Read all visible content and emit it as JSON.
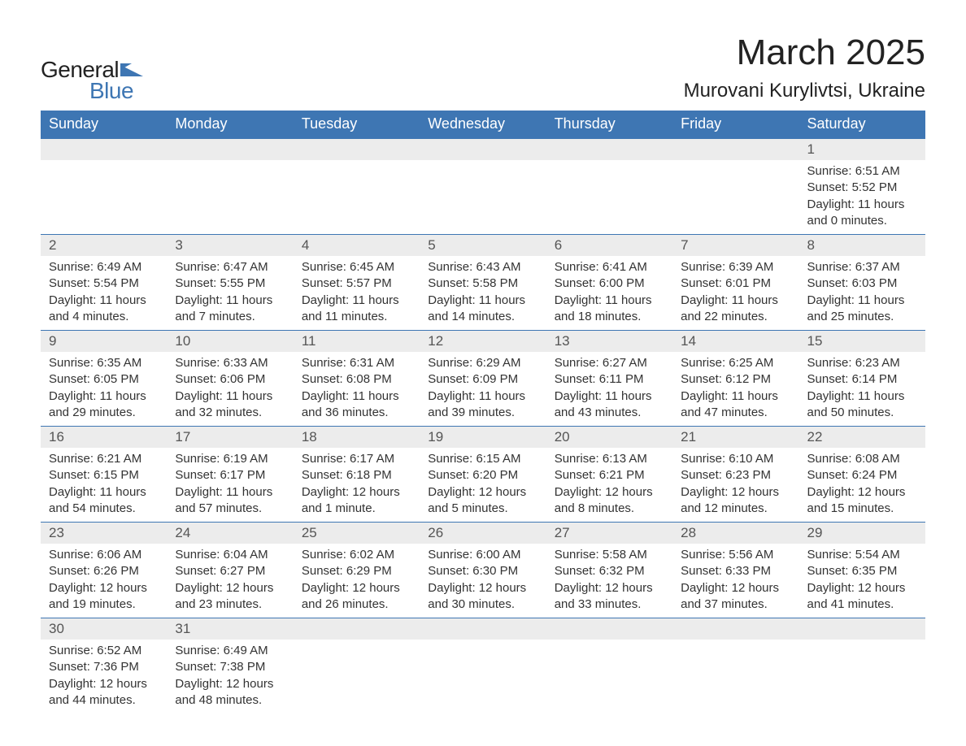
{
  "logo": {
    "text_general": "General",
    "text_blue": "Blue",
    "flag_color": "#3e76b3"
  },
  "header": {
    "month_title": "March 2025",
    "location": "Murovani Kurylivtsi, Ukraine"
  },
  "colors": {
    "header_bg": "#3e76b3",
    "header_text": "#ffffff",
    "day_number_bg": "#ececec",
    "day_number_text": "#555555",
    "body_text": "#333333",
    "border": "#3e76b3",
    "page_bg": "#ffffff"
  },
  "days_of_week": [
    "Sunday",
    "Monday",
    "Tuesday",
    "Wednesday",
    "Thursday",
    "Friday",
    "Saturday"
  ],
  "weeks": [
    [
      null,
      null,
      null,
      null,
      null,
      null,
      {
        "n": "1",
        "sunrise": "Sunrise: 6:51 AM",
        "sunset": "Sunset: 5:52 PM",
        "daylight1": "Daylight: 11 hours",
        "daylight2": "and 0 minutes."
      }
    ],
    [
      {
        "n": "2",
        "sunrise": "Sunrise: 6:49 AM",
        "sunset": "Sunset: 5:54 PM",
        "daylight1": "Daylight: 11 hours",
        "daylight2": "and 4 minutes."
      },
      {
        "n": "3",
        "sunrise": "Sunrise: 6:47 AM",
        "sunset": "Sunset: 5:55 PM",
        "daylight1": "Daylight: 11 hours",
        "daylight2": "and 7 minutes."
      },
      {
        "n": "4",
        "sunrise": "Sunrise: 6:45 AM",
        "sunset": "Sunset: 5:57 PM",
        "daylight1": "Daylight: 11 hours",
        "daylight2": "and 11 minutes."
      },
      {
        "n": "5",
        "sunrise": "Sunrise: 6:43 AM",
        "sunset": "Sunset: 5:58 PM",
        "daylight1": "Daylight: 11 hours",
        "daylight2": "and 14 minutes."
      },
      {
        "n": "6",
        "sunrise": "Sunrise: 6:41 AM",
        "sunset": "Sunset: 6:00 PM",
        "daylight1": "Daylight: 11 hours",
        "daylight2": "and 18 minutes."
      },
      {
        "n": "7",
        "sunrise": "Sunrise: 6:39 AM",
        "sunset": "Sunset: 6:01 PM",
        "daylight1": "Daylight: 11 hours",
        "daylight2": "and 22 minutes."
      },
      {
        "n": "8",
        "sunrise": "Sunrise: 6:37 AM",
        "sunset": "Sunset: 6:03 PM",
        "daylight1": "Daylight: 11 hours",
        "daylight2": "and 25 minutes."
      }
    ],
    [
      {
        "n": "9",
        "sunrise": "Sunrise: 6:35 AM",
        "sunset": "Sunset: 6:05 PM",
        "daylight1": "Daylight: 11 hours",
        "daylight2": "and 29 minutes."
      },
      {
        "n": "10",
        "sunrise": "Sunrise: 6:33 AM",
        "sunset": "Sunset: 6:06 PM",
        "daylight1": "Daylight: 11 hours",
        "daylight2": "and 32 minutes."
      },
      {
        "n": "11",
        "sunrise": "Sunrise: 6:31 AM",
        "sunset": "Sunset: 6:08 PM",
        "daylight1": "Daylight: 11 hours",
        "daylight2": "and 36 minutes."
      },
      {
        "n": "12",
        "sunrise": "Sunrise: 6:29 AM",
        "sunset": "Sunset: 6:09 PM",
        "daylight1": "Daylight: 11 hours",
        "daylight2": "and 39 minutes."
      },
      {
        "n": "13",
        "sunrise": "Sunrise: 6:27 AM",
        "sunset": "Sunset: 6:11 PM",
        "daylight1": "Daylight: 11 hours",
        "daylight2": "and 43 minutes."
      },
      {
        "n": "14",
        "sunrise": "Sunrise: 6:25 AM",
        "sunset": "Sunset: 6:12 PM",
        "daylight1": "Daylight: 11 hours",
        "daylight2": "and 47 minutes."
      },
      {
        "n": "15",
        "sunrise": "Sunrise: 6:23 AM",
        "sunset": "Sunset: 6:14 PM",
        "daylight1": "Daylight: 11 hours",
        "daylight2": "and 50 minutes."
      }
    ],
    [
      {
        "n": "16",
        "sunrise": "Sunrise: 6:21 AM",
        "sunset": "Sunset: 6:15 PM",
        "daylight1": "Daylight: 11 hours",
        "daylight2": "and 54 minutes."
      },
      {
        "n": "17",
        "sunrise": "Sunrise: 6:19 AM",
        "sunset": "Sunset: 6:17 PM",
        "daylight1": "Daylight: 11 hours",
        "daylight2": "and 57 minutes."
      },
      {
        "n": "18",
        "sunrise": "Sunrise: 6:17 AM",
        "sunset": "Sunset: 6:18 PM",
        "daylight1": "Daylight: 12 hours",
        "daylight2": "and 1 minute."
      },
      {
        "n": "19",
        "sunrise": "Sunrise: 6:15 AM",
        "sunset": "Sunset: 6:20 PM",
        "daylight1": "Daylight: 12 hours",
        "daylight2": "and 5 minutes."
      },
      {
        "n": "20",
        "sunrise": "Sunrise: 6:13 AM",
        "sunset": "Sunset: 6:21 PM",
        "daylight1": "Daylight: 12 hours",
        "daylight2": "and 8 minutes."
      },
      {
        "n": "21",
        "sunrise": "Sunrise: 6:10 AM",
        "sunset": "Sunset: 6:23 PM",
        "daylight1": "Daylight: 12 hours",
        "daylight2": "and 12 minutes."
      },
      {
        "n": "22",
        "sunrise": "Sunrise: 6:08 AM",
        "sunset": "Sunset: 6:24 PM",
        "daylight1": "Daylight: 12 hours",
        "daylight2": "and 15 minutes."
      }
    ],
    [
      {
        "n": "23",
        "sunrise": "Sunrise: 6:06 AM",
        "sunset": "Sunset: 6:26 PM",
        "daylight1": "Daylight: 12 hours",
        "daylight2": "and 19 minutes."
      },
      {
        "n": "24",
        "sunrise": "Sunrise: 6:04 AM",
        "sunset": "Sunset: 6:27 PM",
        "daylight1": "Daylight: 12 hours",
        "daylight2": "and 23 minutes."
      },
      {
        "n": "25",
        "sunrise": "Sunrise: 6:02 AM",
        "sunset": "Sunset: 6:29 PM",
        "daylight1": "Daylight: 12 hours",
        "daylight2": "and 26 minutes."
      },
      {
        "n": "26",
        "sunrise": "Sunrise: 6:00 AM",
        "sunset": "Sunset: 6:30 PM",
        "daylight1": "Daylight: 12 hours",
        "daylight2": "and 30 minutes."
      },
      {
        "n": "27",
        "sunrise": "Sunrise: 5:58 AM",
        "sunset": "Sunset: 6:32 PM",
        "daylight1": "Daylight: 12 hours",
        "daylight2": "and 33 minutes."
      },
      {
        "n": "28",
        "sunrise": "Sunrise: 5:56 AM",
        "sunset": "Sunset: 6:33 PM",
        "daylight1": "Daylight: 12 hours",
        "daylight2": "and 37 minutes."
      },
      {
        "n": "29",
        "sunrise": "Sunrise: 5:54 AM",
        "sunset": "Sunset: 6:35 PM",
        "daylight1": "Daylight: 12 hours",
        "daylight2": "and 41 minutes."
      }
    ],
    [
      {
        "n": "30",
        "sunrise": "Sunrise: 6:52 AM",
        "sunset": "Sunset: 7:36 PM",
        "daylight1": "Daylight: 12 hours",
        "daylight2": "and 44 minutes."
      },
      {
        "n": "31",
        "sunrise": "Sunrise: 6:49 AM",
        "sunset": "Sunset: 7:38 PM",
        "daylight1": "Daylight: 12 hours",
        "daylight2": "and 48 minutes."
      },
      null,
      null,
      null,
      null,
      null
    ]
  ]
}
